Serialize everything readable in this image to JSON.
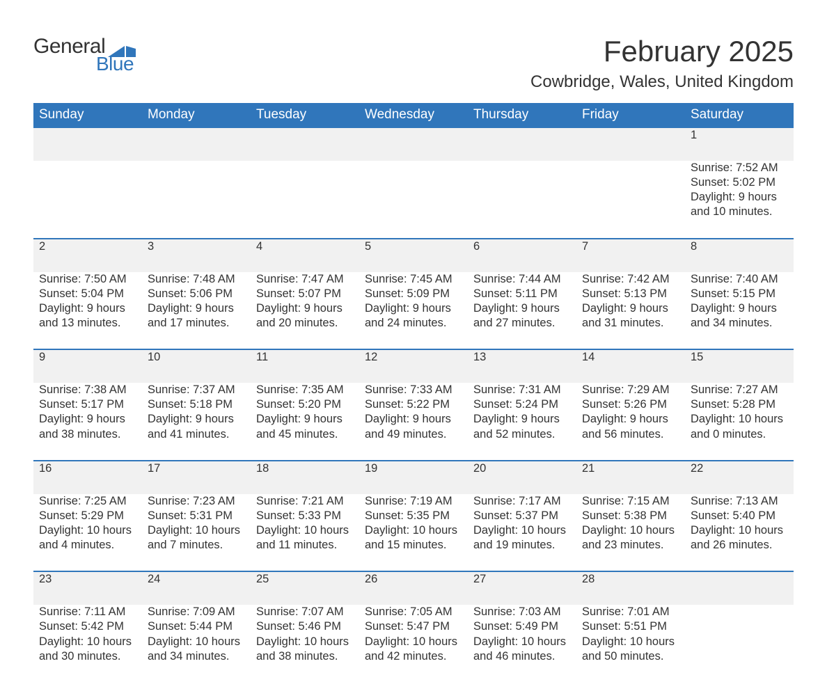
{
  "logo_text1": "General",
  "logo_text2": "Blue",
  "month_title": "February 2025",
  "location": "Cowbridge, Wales, United Kingdom",
  "colors": {
    "header_bg": "#3076bb",
    "header_text": "#ffffff",
    "daynum_bg": "#f1f1f1",
    "row_border": "#3076bb",
    "body_text": "#333333",
    "logo_blue": "#3076bb",
    "page_bg": "#ffffff"
  },
  "weekdays": [
    "Sunday",
    "Monday",
    "Tuesday",
    "Wednesday",
    "Thursday",
    "Friday",
    "Saturday"
  ],
  "weeks": [
    {
      "days": [
        null,
        null,
        null,
        null,
        null,
        null,
        {
          "n": "1",
          "sunrise": "Sunrise: 7:52 AM",
          "sunset": "Sunset: 5:02 PM",
          "d1": "Daylight: 9 hours",
          "d2": "and 10 minutes."
        }
      ]
    },
    {
      "days": [
        {
          "n": "2",
          "sunrise": "Sunrise: 7:50 AM",
          "sunset": "Sunset: 5:04 PM",
          "d1": "Daylight: 9 hours",
          "d2": "and 13 minutes."
        },
        {
          "n": "3",
          "sunrise": "Sunrise: 7:48 AM",
          "sunset": "Sunset: 5:06 PM",
          "d1": "Daylight: 9 hours",
          "d2": "and 17 minutes."
        },
        {
          "n": "4",
          "sunrise": "Sunrise: 7:47 AM",
          "sunset": "Sunset: 5:07 PM",
          "d1": "Daylight: 9 hours",
          "d2": "and 20 minutes."
        },
        {
          "n": "5",
          "sunrise": "Sunrise: 7:45 AM",
          "sunset": "Sunset: 5:09 PM",
          "d1": "Daylight: 9 hours",
          "d2": "and 24 minutes."
        },
        {
          "n": "6",
          "sunrise": "Sunrise: 7:44 AM",
          "sunset": "Sunset: 5:11 PM",
          "d1": "Daylight: 9 hours",
          "d2": "and 27 minutes."
        },
        {
          "n": "7",
          "sunrise": "Sunrise: 7:42 AM",
          "sunset": "Sunset: 5:13 PM",
          "d1": "Daylight: 9 hours",
          "d2": "and 31 minutes."
        },
        {
          "n": "8",
          "sunrise": "Sunrise: 7:40 AM",
          "sunset": "Sunset: 5:15 PM",
          "d1": "Daylight: 9 hours",
          "d2": "and 34 minutes."
        }
      ]
    },
    {
      "days": [
        {
          "n": "9",
          "sunrise": "Sunrise: 7:38 AM",
          "sunset": "Sunset: 5:17 PM",
          "d1": "Daylight: 9 hours",
          "d2": "and 38 minutes."
        },
        {
          "n": "10",
          "sunrise": "Sunrise: 7:37 AM",
          "sunset": "Sunset: 5:18 PM",
          "d1": "Daylight: 9 hours",
          "d2": "and 41 minutes."
        },
        {
          "n": "11",
          "sunrise": "Sunrise: 7:35 AM",
          "sunset": "Sunset: 5:20 PM",
          "d1": "Daylight: 9 hours",
          "d2": "and 45 minutes."
        },
        {
          "n": "12",
          "sunrise": "Sunrise: 7:33 AM",
          "sunset": "Sunset: 5:22 PM",
          "d1": "Daylight: 9 hours",
          "d2": "and 49 minutes."
        },
        {
          "n": "13",
          "sunrise": "Sunrise: 7:31 AM",
          "sunset": "Sunset: 5:24 PM",
          "d1": "Daylight: 9 hours",
          "d2": "and 52 minutes."
        },
        {
          "n": "14",
          "sunrise": "Sunrise: 7:29 AM",
          "sunset": "Sunset: 5:26 PM",
          "d1": "Daylight: 9 hours",
          "d2": "and 56 minutes."
        },
        {
          "n": "15",
          "sunrise": "Sunrise: 7:27 AM",
          "sunset": "Sunset: 5:28 PM",
          "d1": "Daylight: 10 hours",
          "d2": "and 0 minutes."
        }
      ]
    },
    {
      "days": [
        {
          "n": "16",
          "sunrise": "Sunrise: 7:25 AM",
          "sunset": "Sunset: 5:29 PM",
          "d1": "Daylight: 10 hours",
          "d2": "and 4 minutes."
        },
        {
          "n": "17",
          "sunrise": "Sunrise: 7:23 AM",
          "sunset": "Sunset: 5:31 PM",
          "d1": "Daylight: 10 hours",
          "d2": "and 7 minutes."
        },
        {
          "n": "18",
          "sunrise": "Sunrise: 7:21 AM",
          "sunset": "Sunset: 5:33 PM",
          "d1": "Daylight: 10 hours",
          "d2": "and 11 minutes."
        },
        {
          "n": "19",
          "sunrise": "Sunrise: 7:19 AM",
          "sunset": "Sunset: 5:35 PM",
          "d1": "Daylight: 10 hours",
          "d2": "and 15 minutes."
        },
        {
          "n": "20",
          "sunrise": "Sunrise: 7:17 AM",
          "sunset": "Sunset: 5:37 PM",
          "d1": "Daylight: 10 hours",
          "d2": "and 19 minutes."
        },
        {
          "n": "21",
          "sunrise": "Sunrise: 7:15 AM",
          "sunset": "Sunset: 5:38 PM",
          "d1": "Daylight: 10 hours",
          "d2": "and 23 minutes."
        },
        {
          "n": "22",
          "sunrise": "Sunrise: 7:13 AM",
          "sunset": "Sunset: 5:40 PM",
          "d1": "Daylight: 10 hours",
          "d2": "and 26 minutes."
        }
      ]
    },
    {
      "days": [
        {
          "n": "23",
          "sunrise": "Sunrise: 7:11 AM",
          "sunset": "Sunset: 5:42 PM",
          "d1": "Daylight: 10 hours",
          "d2": "and 30 minutes."
        },
        {
          "n": "24",
          "sunrise": "Sunrise: 7:09 AM",
          "sunset": "Sunset: 5:44 PM",
          "d1": "Daylight: 10 hours",
          "d2": "and 34 minutes."
        },
        {
          "n": "25",
          "sunrise": "Sunrise: 7:07 AM",
          "sunset": "Sunset: 5:46 PM",
          "d1": "Daylight: 10 hours",
          "d2": "and 38 minutes."
        },
        {
          "n": "26",
          "sunrise": "Sunrise: 7:05 AM",
          "sunset": "Sunset: 5:47 PM",
          "d1": "Daylight: 10 hours",
          "d2": "and 42 minutes."
        },
        {
          "n": "27",
          "sunrise": "Sunrise: 7:03 AM",
          "sunset": "Sunset: 5:49 PM",
          "d1": "Daylight: 10 hours",
          "d2": "and 46 minutes."
        },
        {
          "n": "28",
          "sunrise": "Sunrise: 7:01 AM",
          "sunset": "Sunset: 5:51 PM",
          "d1": "Daylight: 10 hours",
          "d2": "and 50 minutes."
        },
        null
      ]
    }
  ]
}
